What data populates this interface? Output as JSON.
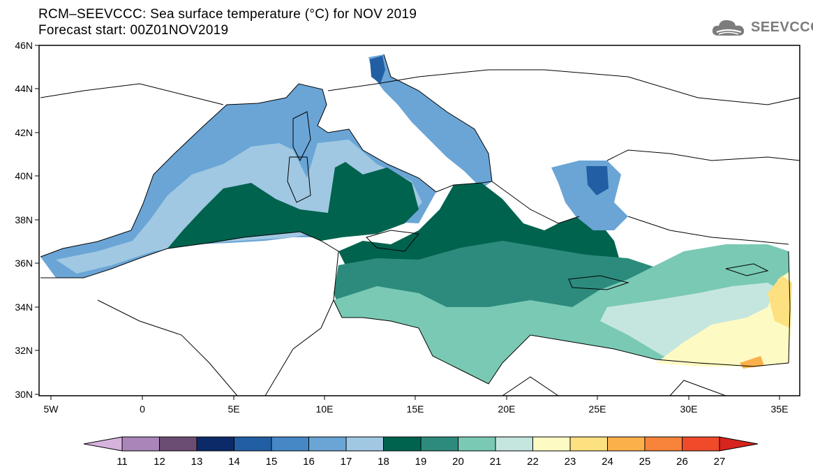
{
  "header": {
    "title_line1": "RCM–SEEVCCC: Sea surface temperature (°C) for NOV 2019",
    "title_line2": "Forecast start: 00Z01NOV2019",
    "logo_text": "SEEVCCC"
  },
  "map": {
    "lat_labels": [
      "46N",
      "44N",
      "42N",
      "40N",
      "38N",
      "36N",
      "34N",
      "32N",
      "30N"
    ],
    "lon_labels": [
      "5W",
      "0",
      "5E",
      "10E",
      "15E",
      "20E",
      "25E",
      "30E",
      "35E"
    ]
  },
  "colorbar": {
    "labels": [
      "11",
      "12",
      "13",
      "14",
      "15",
      "16",
      "17",
      "18",
      "19",
      "20",
      "21",
      "22",
      "23",
      "24",
      "25",
      "26",
      "27"
    ],
    "colors": [
      "#d6b3dd",
      "#a986b9",
      "#6b4c73",
      "#0c2a67",
      "#215ea3",
      "#4688c6",
      "#6aa5d6",
      "#a0c8e2",
      "#00634e",
      "#2d8b7d",
      "#79c9b4",
      "#c5e6de",
      "#fefac4",
      "#fde080",
      "#fbb04a",
      "#f7843a",
      "#ef4a2a",
      "#d7241e"
    ]
  }
}
